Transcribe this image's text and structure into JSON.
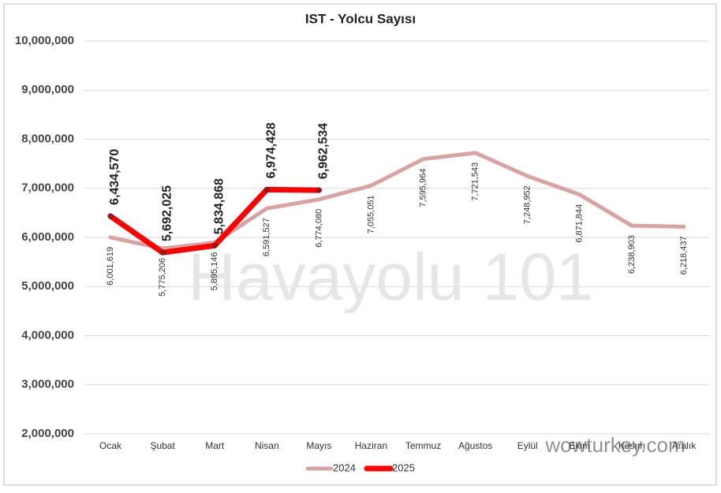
{
  "chart_data": {
    "type": "line",
    "title": "IST - Yolcu Sayısı",
    "categories": [
      "Ocak",
      "Şubat",
      "Mart",
      "Nisan",
      "Mayıs",
      "Haziran",
      "Temmuz",
      "Ağustos",
      "Eylül",
      "Ekim",
      "Kasım",
      "Aralık"
    ],
    "series": [
      {
        "name": "2024",
        "color": "#d9a3a3",
        "values": [
          6001619,
          5775206,
          5895146,
          6591527,
          6774080,
          7055051,
          7595964,
          7721543,
          7248952,
          6871844,
          6238903,
          6218437
        ],
        "value_labels": [
          "6,001,619",
          "5,775,206",
          "5,895,146",
          "6,591,527",
          "6,774,080",
          "7,055,051",
          "7,595,964",
          "7,721,543",
          "7,248,952",
          "6,871,844",
          "6,238,903",
          "6,218,437"
        ]
      },
      {
        "name": "2025",
        "color": "#ff0000",
        "values": [
          6434570,
          5692025,
          5834868,
          6974428,
          6962534,
          null,
          null,
          null,
          null,
          null,
          null,
          null
        ],
        "value_labels": [
          "6,434,570",
          "5,692,025",
          "5,834,868",
          "6,974,428",
          "6,962,534",
          null,
          null,
          null,
          null,
          null,
          null,
          null
        ]
      }
    ],
    "ylim": [
      2000000,
      10000000
    ],
    "yticks": [
      {
        "value": 2000000,
        "label": "2,000,000"
      },
      {
        "value": 3000000,
        "label": "3,000,000"
      },
      {
        "value": 4000000,
        "label": "4,000,000"
      },
      {
        "value": 5000000,
        "label": "5,000,000"
      },
      {
        "value": 6000000,
        "label": "6,000,000"
      },
      {
        "value": 7000000,
        "label": "7,000,000"
      },
      {
        "value": 8000000,
        "label": "8,000,000"
      },
      {
        "value": 9000000,
        "label": "9,000,000"
      },
      {
        "value": 10000000,
        "label": "10,000,000"
      }
    ],
    "grid": true,
    "legend": "bottom",
    "watermarks": [
      "Havayolu 101",
      "wowturkey.com"
    ]
  }
}
